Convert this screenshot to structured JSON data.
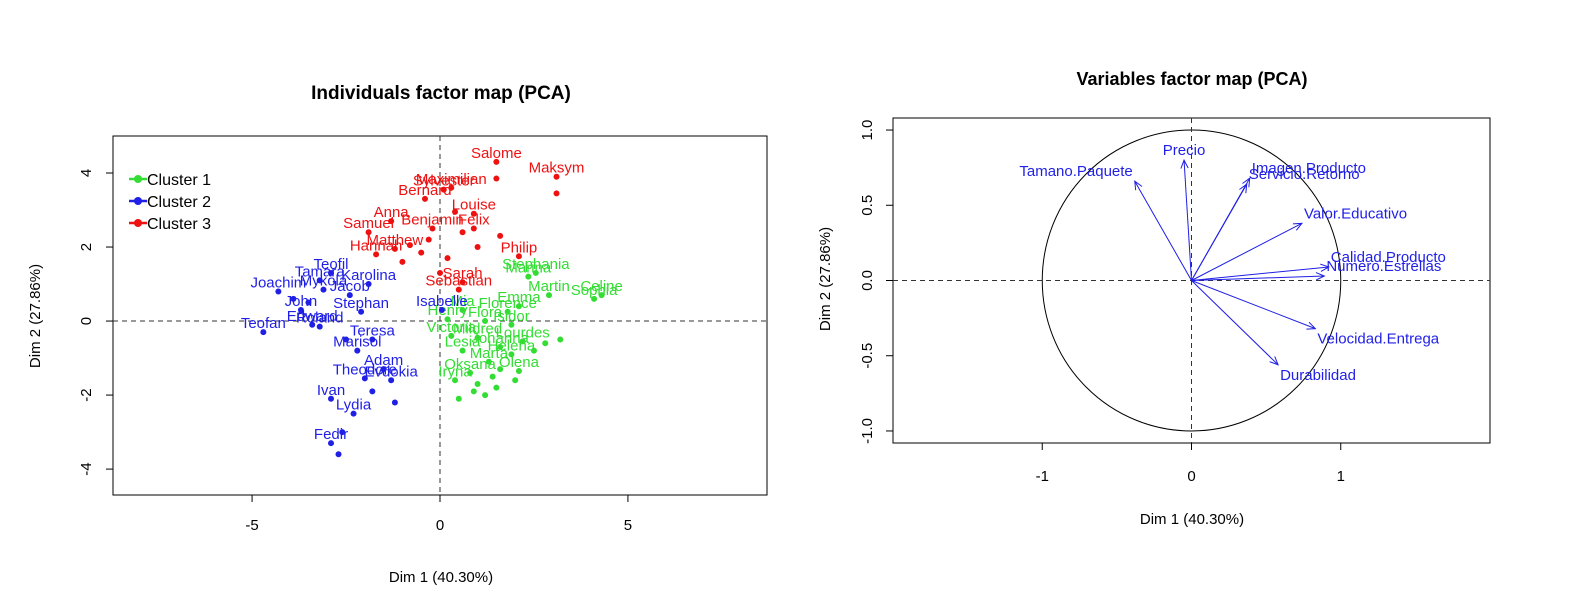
{
  "chart_data": [
    {
      "type": "scatter",
      "title": "Individuals factor map (PCA)",
      "xlabel": "Dim 1 (40.30%)",
      "ylabel": "Dim 2 (27.86%)",
      "xlim": [
        -8.7,
        8.7
      ],
      "ylim": [
        -4.7,
        5.0
      ],
      "xticks": [
        -5,
        0,
        5
      ],
      "yticks": [
        -4,
        -2,
        0,
        2,
        4
      ],
      "legend": {
        "placement": "top-left"
      },
      "reference_lines": {
        "x": 0,
        "y": 0,
        "style": "dashed"
      },
      "series": [
        {
          "name": "Cluster 1",
          "color": "#33dd33",
          "points": [
            {
              "x": 2.55,
              "y": 1.3,
              "label": "Stephania"
            },
            {
              "x": 2.35,
              "y": 1.2,
              "label": "Marina"
            },
            {
              "x": 2.9,
              "y": 0.7,
              "label": "Martin"
            },
            {
              "x": 4.3,
              "y": 0.7,
              "label": "Celine"
            },
            {
              "x": 4.1,
              "y": 0.6,
              "label": "Sophia"
            },
            {
              "x": 2.1,
              "y": 0.4,
              "label": "Emma"
            },
            {
              "x": 1.8,
              "y": 0.25,
              "label": "Florence"
            },
            {
              "x": 0.6,
              "y": 0.3,
              "label": "Mia"
            },
            {
              "x": 0.2,
              "y": 0.05,
              "label": "Henry"
            },
            {
              "x": 1.2,
              "y": 0.0,
              "label": "Flora"
            },
            {
              "x": 1.9,
              "y": -0.1,
              "label": "Isidor"
            },
            {
              "x": 0.3,
              "y": -0.4,
              "label": "Victoria"
            },
            {
              "x": 1.0,
              "y": -0.45,
              "label": "Mildred"
            },
            {
              "x": 2.2,
              "y": -0.55,
              "label": "Lourdes"
            },
            {
              "x": 1.6,
              "y": -0.7,
              "label": "Johanna"
            },
            {
              "x": 0.6,
              "y": -0.8,
              "label": "Lesia"
            },
            {
              "x": 1.9,
              "y": -0.9,
              "label": "Helena"
            },
            {
              "x": 1.3,
              "y": -1.1,
              "label": "Marta"
            },
            {
              "x": 2.1,
              "y": -1.35,
              "label": "Olena"
            },
            {
              "x": 0.8,
              "y": -1.4,
              "label": "Oksana"
            },
            {
              "x": 0.4,
              "y": -1.6,
              "label": "Iryna"
            },
            {
              "x": 1.6,
              "y": -1.3
            },
            {
              "x": 1.4,
              "y": -1.5
            },
            {
              "x": 2.5,
              "y": -0.8
            },
            {
              "x": 2.8,
              "y": -0.6
            },
            {
              "x": 1.0,
              "y": -1.7
            },
            {
              "x": 0.9,
              "y": -1.9
            },
            {
              "x": 1.2,
              "y": -2.0
            },
            {
              "x": 1.5,
              "y": -1.8
            },
            {
              "x": 0.5,
              "y": -2.1
            },
            {
              "x": 3.2,
              "y": -0.5
            },
            {
              "x": 2.0,
              "y": -1.6
            }
          ]
        },
        {
          "name": "Cluster 2",
          "color": "#1f1fe6",
          "points": [
            {
              "x": -2.9,
              "y": 1.3,
              "label": "Teofil"
            },
            {
              "x": -3.2,
              "y": 1.1,
              "label": "Tamara"
            },
            {
              "x": -1.9,
              "y": 1.0,
              "label": "Karolina"
            },
            {
              "x": -4.3,
              "y": 0.8,
              "label": "Joachim"
            },
            {
              "x": -3.1,
              "y": 0.85,
              "label": "Mykola"
            },
            {
              "x": -2.4,
              "y": 0.7,
              "label": "Jacob"
            },
            {
              "x": -3.7,
              "y": 0.3,
              "label": "John"
            },
            {
              "x": -2.1,
              "y": 0.25,
              "label": "Stephan"
            },
            {
              "x": -4.7,
              "y": -0.3,
              "label": "Teofan"
            },
            {
              "x": -3.4,
              "y": -0.1,
              "label": "Edward"
            },
            {
              "x": -3.2,
              "y": -0.15,
              "label": "Roland"
            },
            {
              "x": 0.05,
              "y": 0.3,
              "label": "Isabelle"
            },
            {
              "x": -1.8,
              "y": -0.5,
              "label": "Teresa"
            },
            {
              "x": -2.2,
              "y": -0.8,
              "label": "Marisol"
            },
            {
              "x": -1.5,
              "y": -1.3,
              "label": "Adam"
            },
            {
              "x": -2.0,
              "y": -1.55,
              "label": "Theodore"
            },
            {
              "x": -1.3,
              "y": -1.6,
              "label": "Evdokia"
            },
            {
              "x": -2.9,
              "y": -2.1,
              "label": "Ivan"
            },
            {
              "x": -2.3,
              "y": -2.5,
              "label": "Lydia"
            },
            {
              "x": -2.9,
              "y": -3.3,
              "label": "Fedir"
            },
            {
              "x": -2.5,
              "y": -0.5
            },
            {
              "x": -1.2,
              "y": -2.2
            },
            {
              "x": -2.6,
              "y": -3.0
            },
            {
              "x": -2.7,
              "y": -3.6
            },
            {
              "x": -1.8,
              "y": -1.9
            },
            {
              "x": -3.5,
              "y": 0.5
            },
            {
              "x": -3.9,
              "y": 0.6
            }
          ]
        },
        {
          "name": "Cluster 3",
          "color": "#ee1111",
          "points": [
            {
              "x": 1.5,
              "y": 4.3,
              "label": "Salome"
            },
            {
              "x": 3.1,
              "y": 3.9,
              "label": "Maksym"
            },
            {
              "x": 0.3,
              "y": 3.6,
              "label": "Maximilian"
            },
            {
              "x": 0.1,
              "y": 3.55,
              "label": "Sylvester"
            },
            {
              "x": -0.4,
              "y": 3.3,
              "label": "Bernard"
            },
            {
              "x": 0.9,
              "y": 2.9,
              "label": "Louise"
            },
            {
              "x": -1.3,
              "y": 2.7,
              "label": "Anna"
            },
            {
              "x": 0.9,
              "y": 2.5,
              "label": "Felix"
            },
            {
              "x": -1.9,
              "y": 2.4,
              "label": "Samuel"
            },
            {
              "x": -0.2,
              "y": 2.5,
              "label": "Benjamin"
            },
            {
              "x": -1.2,
              "y": 1.95,
              "label": "Matthew"
            },
            {
              "x": -1.7,
              "y": 1.8,
              "label": "Hannah"
            },
            {
              "x": 2.1,
              "y": 1.75,
              "label": "Philip"
            },
            {
              "x": 0.6,
              "y": 1.05,
              "label": "Sarah"
            },
            {
              "x": 0.5,
              "y": 0.85,
              "label": "Sebastian"
            },
            {
              "x": 1.5,
              "y": 3.85
            },
            {
              "x": 3.1,
              "y": 3.45
            },
            {
              "x": 0.4,
              "y": 2.95
            },
            {
              "x": 0.6,
              "y": 2.4
            },
            {
              "x": -0.3,
              "y": 2.2
            },
            {
              "x": -0.8,
              "y": 2.05
            },
            {
              "x": 1.0,
              "y": 2.0
            },
            {
              "x": -0.5,
              "y": 1.85
            },
            {
              "x": 0.2,
              "y": 1.7
            },
            {
              "x": 1.6,
              "y": 2.3
            },
            {
              "x": -1.0,
              "y": 1.6
            },
            {
              "x": 0.0,
              "y": 1.3
            }
          ]
        }
      ]
    },
    {
      "type": "scatter",
      "title": "Variables factor map (PCA)",
      "xlabel": "Dim 1 (40.30%)",
      "ylabel": "Dim 2 (27.86%)",
      "xlim": [
        -2.0,
        2.0
      ],
      "ylim": [
        -1.08,
        1.08
      ],
      "xticks": [
        -1,
        0,
        1
      ],
      "yticks": [
        -1.0,
        -0.5,
        0.0,
        0.5,
        1.0
      ],
      "grid": false,
      "unit_circle": true,
      "reference_lines": {
        "x": 0,
        "y": 0,
        "style": "dashed"
      },
      "arrow_color": "#1f1fe6",
      "variables": [
        {
          "name": "Precio",
          "x": -0.05,
          "y": 0.8
        },
        {
          "name": "Tamano.Paquete",
          "x": -0.38,
          "y": 0.66
        },
        {
          "name": "Imagen.Producto",
          "x": 0.39,
          "y": 0.68
        },
        {
          "name": "Servicio.Retorno",
          "x": 0.37,
          "y": 0.64
        },
        {
          "name": "Valor.Educativo",
          "x": 0.74,
          "y": 0.38
        },
        {
          "name": "Calidad.Producto",
          "x": 0.92,
          "y": 0.09
        },
        {
          "name": "Numero.Estrellas",
          "x": 0.89,
          "y": 0.03
        },
        {
          "name": "Velocidad.Entrega",
          "x": 0.83,
          "y": -0.32
        },
        {
          "name": "Durabilidad",
          "x": 0.58,
          "y": -0.56
        }
      ]
    }
  ]
}
